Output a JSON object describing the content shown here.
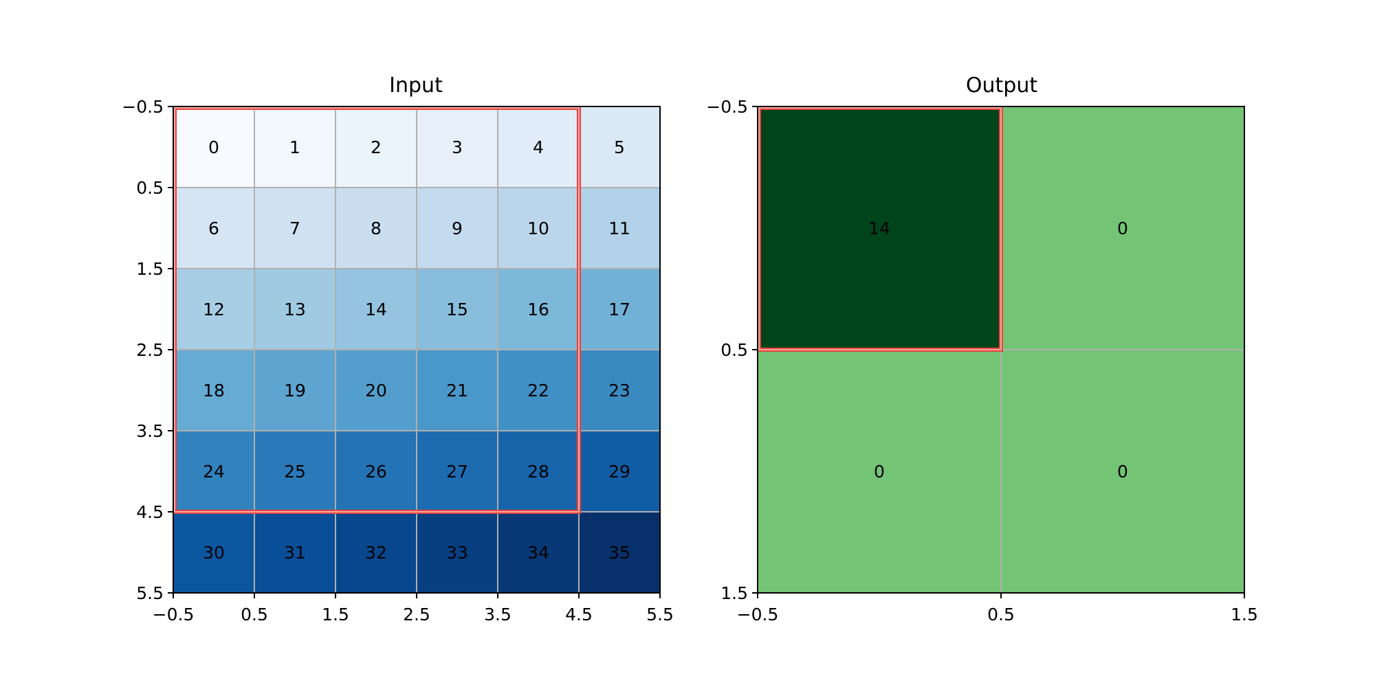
{
  "chart_data": [
    {
      "type": "heatmap",
      "title": "Input",
      "colormap": "Blues",
      "rows": 6,
      "cols": 6,
      "values": [
        [
          0,
          1,
          2,
          3,
          4,
          5
        ],
        [
          6,
          7,
          8,
          9,
          10,
          11
        ],
        [
          12,
          13,
          14,
          15,
          16,
          17
        ],
        [
          18,
          19,
          20,
          21,
          22,
          23
        ],
        [
          24,
          25,
          26,
          27,
          28,
          29
        ],
        [
          30,
          31,
          32,
          33,
          34,
          35
        ]
      ],
      "xlim": [
        -0.5,
        5.5
      ],
      "ylim": [
        5.5,
        -0.5
      ],
      "xticks": [
        -0.5,
        0.5,
        1.5,
        2.5,
        3.5,
        4.5,
        5.5
      ],
      "yticks": [
        -0.5,
        0.5,
        1.5,
        2.5,
        3.5,
        4.5,
        5.5
      ],
      "xtick_labels": [
        "−0.5",
        "0.5",
        "1.5",
        "2.5",
        "3.5",
        "4.5",
        "5.5"
      ],
      "ytick_labels": [
        "−0.5",
        "0.5",
        "1.5",
        "2.5",
        "3.5",
        "4.5",
        "5.5"
      ],
      "grid": true,
      "highlight": {
        "row_start": 0,
        "row_end": 4,
        "col_start": 0,
        "col_end": 4,
        "color": "#e8433c"
      }
    },
    {
      "type": "heatmap",
      "title": "Output",
      "colormap": "Greens",
      "rows": 2,
      "cols": 2,
      "values": [
        [
          14,
          0
        ],
        [
          0,
          0
        ]
      ],
      "xlim": [
        -0.5,
        1.5
      ],
      "ylim": [
        1.5,
        -0.5
      ],
      "xticks": [
        -0.5,
        0.5,
        1.5
      ],
      "yticks": [
        -0.5,
        0.5,
        1.5
      ],
      "xtick_labels": [
        "−0.5",
        "0.5",
        "1.5"
      ],
      "ytick_labels": [
        "−0.5",
        "0.5",
        "1.5"
      ],
      "grid": true,
      "highlight": {
        "row_start": 0,
        "row_end": 0,
        "col_start": 0,
        "col_end": 0,
        "color": "#e8433c"
      }
    }
  ]
}
